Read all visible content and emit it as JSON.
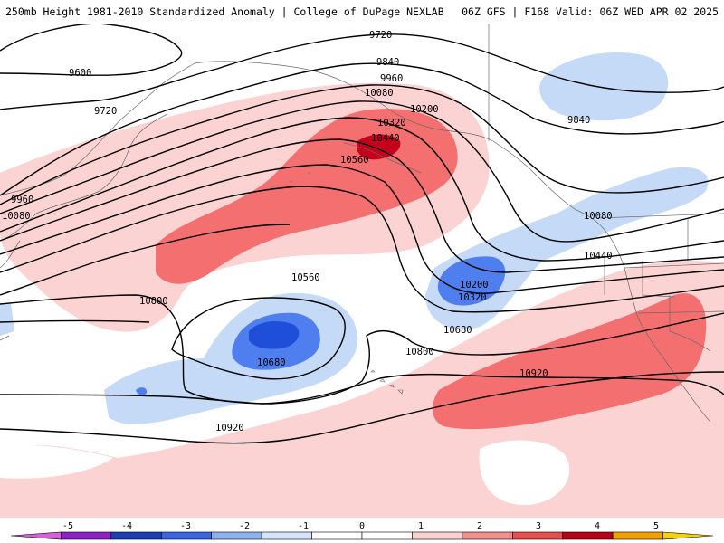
{
  "header": {
    "left_title": "250mb Height 1981-2010 Standardized Anomaly | College of DuPage NEXLAB",
    "right_title": "06Z GFS | F168 Valid: 06Z WED APR 02 2025"
  },
  "contour_labels": [
    "9720",
    "9600",
    "9720",
    "9840",
    "9960",
    "10080",
    "10200",
    "10320",
    "10440",
    "10560",
    "9960",
    "10080",
    "10560",
    "10800",
    "10680",
    "10680",
    "10800",
    "10920",
    "10200",
    "10320",
    "10080",
    "10440",
    "10920",
    "9840"
  ],
  "colorbar": {
    "ticks": [
      "-5",
      "-4",
      "-3",
      "-2",
      "-1",
      "0",
      "1",
      "2",
      "3",
      "4",
      "5"
    ],
    "colors": [
      "#d95fd9",
      "#8c22c4",
      "#1a3fb5",
      "#3a64e0",
      "#8fb1f0",
      "#d4e4fa",
      "#ffffff",
      "#ffffff",
      "#fbd0d0",
      "#f29090",
      "#e5504f",
      "#b80014",
      "#f2a000",
      "#f5d300"
    ]
  },
  "legend_colors": {
    "m3": "#1f4ed8",
    "m2": "#4f7fef",
    "m1": "#c5daf7",
    "p1": "#fcd3d3",
    "p2": "#f46f6f",
    "p3": "#c4001a"
  }
}
